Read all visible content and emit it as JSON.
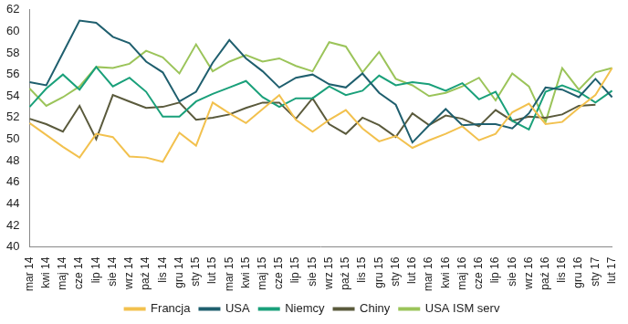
{
  "chart_data": {
    "type": "line",
    "categories": [
      "mar 14",
      "kwi 14",
      "maj 14",
      "cze 14",
      "lip 14",
      "sie 14",
      "wrz 14",
      "paź 14",
      "lis 14",
      "gru 14",
      "sty 15",
      "lut 15",
      "mar 15",
      "kwi 15",
      "maj 15",
      "cze 15",
      "lip 15",
      "sie 15",
      "wrz 15",
      "paź 15",
      "lis 15",
      "gru 15",
      "sty 16",
      "lut 16",
      "mar 16",
      "kwi 16",
      "maj 16",
      "cze 16",
      "lip 16",
      "sie 16",
      "wrz 16",
      "paź 16",
      "lis 16",
      "gru 16",
      "sty 17",
      "lut 17"
    ],
    "series": [
      {
        "name": "Francja",
        "color": "#f2c14e",
        "values": [
          51.5,
          50.4,
          49.3,
          48.3,
          50.5,
          50.2,
          48.4,
          48.3,
          47.9,
          50.6,
          49.4,
          53.4,
          52.4,
          51.5,
          52.8,
          54.1,
          51.8,
          50.7,
          51.8,
          52.7,
          51.0,
          49.8,
          50.3,
          49.2,
          49.9,
          50.5,
          51.2,
          49.9,
          50.5,
          52.5,
          53.3,
          51.4,
          51.6,
          52.9,
          54.1,
          56.6
        ]
      },
      {
        "name": "USA",
        "color": "#1f5f6e",
        "values": [
          55.3,
          55.0,
          58.0,
          61.0,
          60.8,
          59.5,
          58.9,
          57.2,
          56.2,
          53.5,
          54.4,
          57.1,
          59.2,
          57.5,
          56.3,
          54.8,
          55.7,
          56.0,
          55.1,
          54.8,
          56.1,
          54.3,
          53.2,
          49.7,
          51.3,
          52.8,
          51.3,
          51.4,
          51.4,
          51.0,
          52.4,
          54.8,
          54.6,
          53.9,
          55.6,
          53.9
        ]
      },
      {
        "name": "Niemcy",
        "color": "#1aa07a",
        "values": [
          53.0,
          54.7,
          56.0,
          54.6,
          56.7,
          54.9,
          55.7,
          54.4,
          52.1,
          52.1,
          53.5,
          54.2,
          54.8,
          55.4,
          53.9,
          53.0,
          53.8,
          53.8,
          54.9,
          54.1,
          54.5,
          55.9,
          55.0,
          55.3,
          55.1,
          54.5,
          55.2,
          53.7,
          54.4,
          51.7,
          50.9,
          54.4,
          55.0,
          54.4,
          53.4,
          54.5
        ]
      },
      {
        "name": "Chiny",
        "color": "#5a5a3c",
        "values": [
          51.9,
          51.4,
          50.7,
          53.1,
          50.0,
          54.1,
          53.5,
          52.9,
          53.0,
          53.4,
          51.8,
          52.0,
          52.3,
          52.9,
          53.4,
          53.4,
          51.9,
          53.8,
          51.4,
          50.5,
          52.0,
          51.3,
          50.2,
          52.4,
          51.3,
          52.2,
          51.9,
          51.2,
          52.7,
          51.7,
          52.1,
          52.0,
          52.3,
          53.1,
          53.2,
          null
        ]
      },
      {
        "name": "USA ISM serv",
        "color": "#9bc45a",
        "values": [
          54.7,
          53.1,
          53.9,
          54.9,
          56.7,
          56.6,
          57.0,
          58.2,
          57.6,
          56.1,
          58.8,
          56.3,
          57.2,
          57.8,
          57.2,
          57.5,
          56.8,
          56.3,
          59.0,
          58.6,
          56.2,
          58.1,
          55.6,
          55.0,
          54.0,
          54.3,
          54.9,
          55.7,
          53.6,
          56.1,
          54.9,
          51.6,
          56.6,
          54.6,
          56.2,
          56.6
        ]
      }
    ],
    "ylim": [
      40,
      62
    ],
    "yticks": [
      40,
      42,
      44,
      46,
      48,
      50,
      52,
      54,
      56,
      58,
      60,
      62
    ],
    "grid": false,
    "legend": "bottom"
  }
}
